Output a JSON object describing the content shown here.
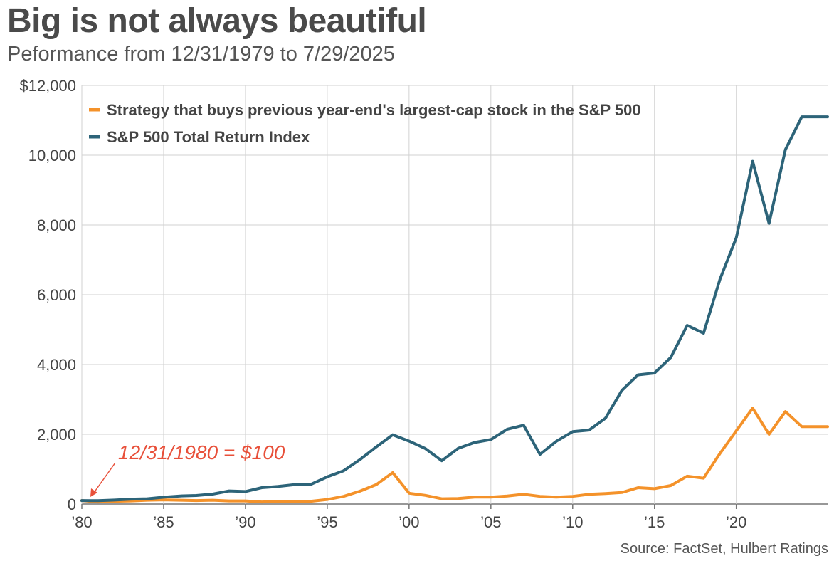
{
  "chart_data": {
    "type": "line",
    "title": "Big is not always beautiful",
    "subtitle": "Peformance from 12/31/1979 to 7/29/2025",
    "source": "Source: FactSet, Hulbert Ratings",
    "xlim": [
      1980,
      2025.58
    ],
    "ylim": [
      0,
      12000
    ],
    "y_ticks": [
      {
        "value": 0,
        "label": "0"
      },
      {
        "value": 2000,
        "label": "2,000"
      },
      {
        "value": 4000,
        "label": "4,000"
      },
      {
        "value": 6000,
        "label": "6,000"
      },
      {
        "value": 8000,
        "label": "8,000"
      },
      {
        "value": 10000,
        "label": "10,000"
      },
      {
        "value": 12000,
        "label": "$12,000"
      }
    ],
    "x_ticks": [
      {
        "value": 1980,
        "label": "’80"
      },
      {
        "value": 1985,
        "label": "’85"
      },
      {
        "value": 1990,
        "label": "’90"
      },
      {
        "value": 1995,
        "label": "’95"
      },
      {
        "value": 2000,
        "label": "’00"
      },
      {
        "value": 2005,
        "label": "’05"
      },
      {
        "value": 2010,
        "label": "’10"
      },
      {
        "value": 2015,
        "label": "’15"
      },
      {
        "value": 2020,
        "label": "’20"
      }
    ],
    "grid": true,
    "legend_position": "top-left",
    "series": [
      {
        "name": "Strategy that buys previous year-end's largest-cap stock in the S&P 500",
        "color": "#f4922a",
        "x": [
          1980,
          1981,
          1982,
          1983,
          1984,
          1985,
          1986,
          1987,
          1988,
          1989,
          1990,
          1991,
          1992,
          1993,
          1994,
          1995,
          1996,
          1997,
          1998,
          1999,
          2000,
          2001,
          2002,
          2003,
          2004,
          2005,
          2006,
          2007,
          2008,
          2009,
          2010,
          2011,
          2012,
          2013,
          2014,
          2015,
          2016,
          2017,
          2018,
          2019,
          2020,
          2021,
          2022,
          2023,
          2024,
          2025.58
        ],
        "y": [
          100,
          60,
          80,
          90,
          110,
          120,
          110,
          100,
          110,
          90,
          90,
          60,
          80,
          80,
          80,
          130,
          220,
          370,
          560,
          900,
          310,
          250,
          150,
          160,
          200,
          200,
          230,
          280,
          220,
          200,
          220,
          280,
          300,
          330,
          470,
          440,
          530,
          800,
          740,
          1450,
          2100,
          2750,
          2000,
          2650,
          2220,
          2220
        ]
      },
      {
        "name": "S&P 500 Total Return Index",
        "color": "#2d6479",
        "x": [
          1980,
          1981,
          1982,
          1983,
          1984,
          1985,
          1986,
          1987,
          1988,
          1989,
          1990,
          1991,
          1992,
          1993,
          1994,
          1995,
          1996,
          1997,
          1998,
          1999,
          2000,
          2001,
          2002,
          2003,
          2004,
          2005,
          2006,
          2007,
          2008,
          2009,
          2010,
          2011,
          2012,
          2013,
          2014,
          2015,
          2016,
          2017,
          2018,
          2019,
          2020,
          2021,
          2022,
          2023,
          2024,
          2025.58
        ],
        "y": [
          100,
          95,
          115,
          140,
          150,
          195,
          230,
          245,
          285,
          375,
          360,
          470,
          505,
          555,
          565,
          780,
          955,
          1275,
          1640,
          1985,
          1805,
          1590,
          1240,
          1595,
          1765,
          1850,
          2145,
          2260,
          1425,
          1800,
          2075,
          2120,
          2460,
          3255,
          3705,
          3755,
          4205,
          5120,
          4895,
          6440,
          7635,
          9825,
          8045,
          10160,
          11100,
          11100
        ]
      }
    ],
    "annotations": [
      {
        "text": "12/31/1980 = $100",
        "x": 1981,
        "y": 100
      }
    ]
  }
}
